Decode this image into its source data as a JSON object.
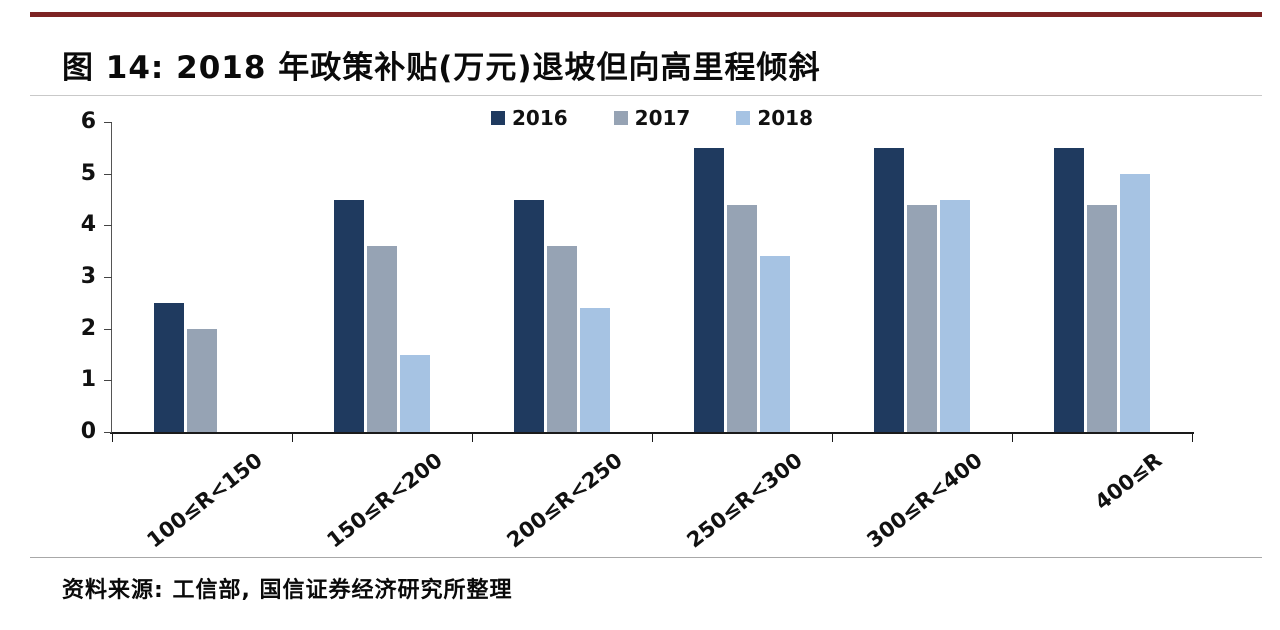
{
  "header": {
    "title": "图 14:  2018 年政策补贴(万元)退坡但向高里程倾斜"
  },
  "chart_data": {
    "type": "bar",
    "title": "图 14: 2018 年政策补贴(万元)退坡但向高里程倾斜",
    "categories": [
      "100≤R<150",
      "150≤R<200",
      "200≤R<250",
      "250≤R<300",
      "300≤R<400",
      "400≤R"
    ],
    "series": [
      {
        "name": "2016",
        "color": "#1f3a5f",
        "values": [
          2.5,
          4.5,
          4.5,
          5.5,
          5.5,
          5.5
        ]
      },
      {
        "name": "2017",
        "color": "#96a3b4",
        "values": [
          2.0,
          3.6,
          3.6,
          4.4,
          4.4,
          4.4
        ]
      },
      {
        "name": "2018",
        "color": "#a6c3e3",
        "values": [
          0,
          1.5,
          2.4,
          3.4,
          4.5,
          5.0
        ]
      }
    ],
    "ylim": [
      0,
      6
    ],
    "yticks": [
      0,
      1,
      2,
      3,
      4,
      5,
      6
    ],
    "legend_position": "top",
    "grid": false
  },
  "footer": {
    "source": "资料来源: 工信部, 国信证券经济研究所整理"
  },
  "colors": {
    "top_rule": "#7d2323",
    "axis": "#1a1a1a"
  }
}
